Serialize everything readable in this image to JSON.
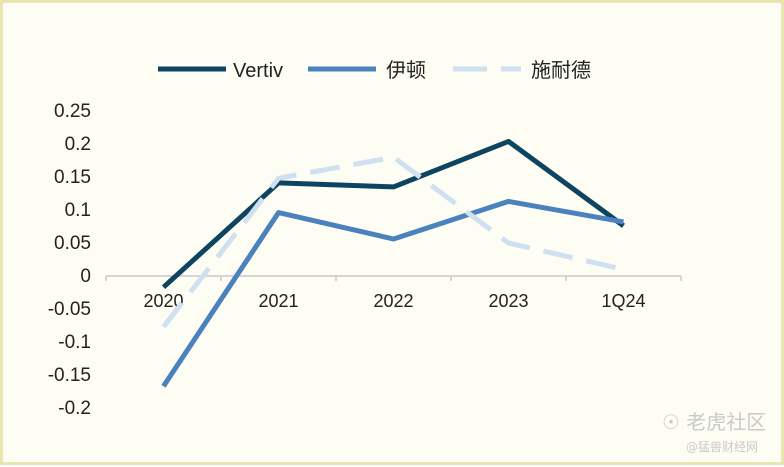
{
  "chart_data": {
    "type": "line",
    "title": "",
    "xlabel": "",
    "ylabel": "",
    "categories": [
      "2020",
      "2021",
      "2022",
      "2023",
      "1Q24"
    ],
    "ylim": [
      -0.2,
      0.25
    ],
    "yticks": [
      0.25,
      0.2,
      0.15,
      0.1,
      0.05,
      0,
      -0.05,
      -0.1,
      -0.15,
      -0.2
    ],
    "ytick_labels": [
      "0.25",
      "0.2",
      "0.15",
      "0.1",
      "0.05",
      "0",
      "-0.05",
      "-0.1",
      "-0.15",
      "-0.2"
    ],
    "grid": false,
    "legend_position": "top",
    "series": [
      {
        "name": "Vertiv",
        "values": [
          -0.017,
          0.141,
          0.135,
          0.204,
          0.076
        ],
        "color": "#0d4461",
        "style": "solid"
      },
      {
        "name": "伊顿",
        "values": [
          -0.167,
          0.096,
          0.056,
          0.113,
          0.082
        ],
        "color": "#4b82be",
        "style": "solid"
      },
      {
        "name": "施耐德",
        "values": [
          -0.077,
          0.148,
          0.18,
          0.05,
          0.01
        ],
        "color": "#cfe0f0",
        "style": "dashed"
      }
    ]
  },
  "watermark": {
    "brand": "老虎社区",
    "sub": "@猛兽财经网"
  }
}
